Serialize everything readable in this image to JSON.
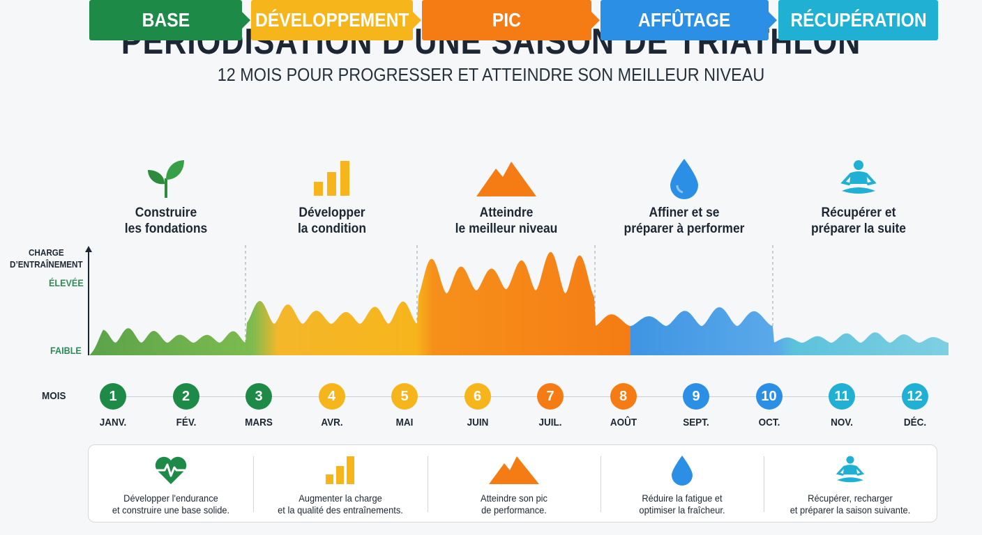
{
  "title": "PÉRIODISATION D’UNE SAISON DE TRIATHLON",
  "subtitle": "12 MOIS POUR PROGRESSER ET ATTEINDRE SON MEILLEUR NIVEAU",
  "colors": {
    "base": "#1e8a47",
    "developpement": "#f7b51c",
    "pic": "#f57c14",
    "affutage": "#2b8fe6",
    "recuperation": "#1fb0d3"
  },
  "phases": [
    {
      "label": "BASE",
      "icon": "seedling-icon",
      "description": "Construire\nles fondations"
    },
    {
      "label": "DÉVELOPPEMENT",
      "icon": "bar-chart-icon",
      "description": "Développer\nla condition"
    },
    {
      "label": "PIC",
      "icon": "mountain-icon",
      "description": "Atteindre\nle meilleur niveau"
    },
    {
      "label": "AFFÛTAGE",
      "icon": "water-drop-icon",
      "description": "Affiner et se\npréparer à performer"
    },
    {
      "label": "RÉCUPÉRATION",
      "icon": "meditation-icon",
      "description": "Récupérer et\npréparer la suite"
    }
  ],
  "axis": {
    "label": "CHARGE\nD’ENTRAÎNEMENT",
    "high": "ÉLEVÉE",
    "low": "FAIBLE"
  },
  "months_label": "MOIS",
  "months": [
    {
      "num": "1",
      "name": "JANV.",
      "phase": "base"
    },
    {
      "num": "2",
      "name": "FÉV.",
      "phase": "base"
    },
    {
      "num": "3",
      "name": "MARS",
      "phase": "base"
    },
    {
      "num": "4",
      "name": "AVR.",
      "phase": "developpement"
    },
    {
      "num": "5",
      "name": "MAI",
      "phase": "developpement"
    },
    {
      "num": "6",
      "name": "JUIN",
      "phase": "developpement"
    },
    {
      "num": "7",
      "name": "JUIL.",
      "phase": "pic"
    },
    {
      "num": "8",
      "name": "AOÛT",
      "phase": "pic"
    },
    {
      "num": "9",
      "name": "SEPT.",
      "phase": "affutage"
    },
    {
      "num": "10",
      "name": "OCT.",
      "phase": "affutage"
    },
    {
      "num": "11",
      "name": "NOV.",
      "phase": "recuperation"
    },
    {
      "num": "12",
      "name": "DÉC.",
      "phase": "recuperation"
    }
  ],
  "legend": [
    {
      "icon": "heart-pulse-icon",
      "text": "Développer l'endurance\net construire une base solide."
    },
    {
      "icon": "bar-chart-icon",
      "text": "Augmenter la charge\net la qualité des entraînements."
    },
    {
      "icon": "mountain-icon",
      "text": "Atteindre son pic\nde performance."
    },
    {
      "icon": "water-drop-icon",
      "text": "Réduire la fatigue et\noptimiser la fraîcheur."
    },
    {
      "icon": "meditation-icon",
      "text": "Récupérer, recharger\net préparer la saison suivante."
    }
  ],
  "load_profile": {
    "unit": "relative training load (0 = faible, 1 = élevée)",
    "segments": [
      {
        "phase": "base",
        "base_level": 0.12,
        "wave_amplitude": 0.14,
        "waves": 6
      },
      {
        "phase": "developpement",
        "base_level": 0.3,
        "wave_amplitude": 0.22,
        "waves": 6
      },
      {
        "phase": "pic",
        "base_level": 0.55,
        "wave_amplitude": 0.4,
        "waves": 6
      },
      {
        "phase": "affutage",
        "base_level": 0.28,
        "wave_amplitude": 0.18,
        "waves": 5
      },
      {
        "phase": "recuperation",
        "base_level": 0.12,
        "wave_amplitude": 0.1,
        "waves": 6
      }
    ]
  }
}
